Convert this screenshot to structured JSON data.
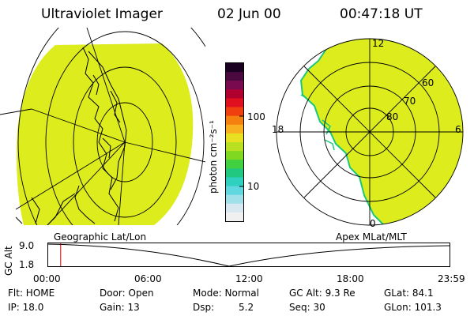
{
  "header": {
    "instrument": "Ultraviolet Imager",
    "date": "02 Jun 00",
    "time": "00:47:18 UT"
  },
  "left_panel": {
    "label": "Geographic Lat/Lon",
    "fill_color": "#dcec1c",
    "land_color": "#000000"
  },
  "right_panel": {
    "label": "Apex MLat/MLT",
    "fill_color": "#dcec1c",
    "edge_color": "#19c87a",
    "mlt_labels": {
      "top": "12",
      "left": "18",
      "right": "6",
      "bottom": "0"
    },
    "lat_labels": [
      "60",
      "70",
      "80"
    ]
  },
  "colorbar": {
    "unit": "photon cm⁻²s⁻¹",
    "ticks": [
      "100",
      "10"
    ],
    "colors": [
      "#1a0020",
      "#4a0a40",
      "#7a0a50",
      "#b00030",
      "#e01020",
      "#f04010",
      "#f48010",
      "#f8b020",
      "#e8e020",
      "#b8e020",
      "#80d820",
      "#40d040",
      "#20c880",
      "#30d0c0",
      "#60d8e0",
      "#a0e0e8",
      "#d8e8f0",
      "#f0f0f0"
    ]
  },
  "altitude": {
    "axis_label": "GC Alt",
    "ymax": "9.0",
    "ymin": "1.8",
    "xticks": [
      "00:00",
      "06:00",
      "12:00",
      "18:00",
      "23:59"
    ],
    "marker_color": "#c00000",
    "marker_time_frac": 0.033
  },
  "info": {
    "flt": "Flt: HOME",
    "ip": "IP: 18.0",
    "door": "Door: Open",
    "gain": "Gain: 13",
    "mode": "Mode: Normal",
    "dsp_label": "Dsp:",
    "dsp_value": "5.2",
    "gcalt": "GC Alt: 9.3 Re",
    "seq": "Seq: 30",
    "glat": "GLat:  84.1",
    "glon": "GLon: 101.3"
  }
}
